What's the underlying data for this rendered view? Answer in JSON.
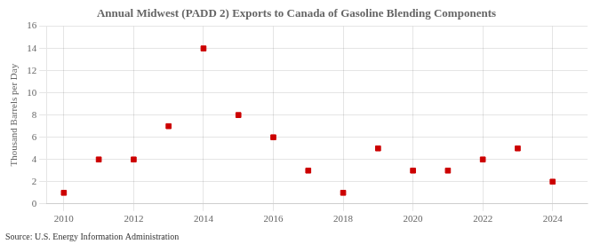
{
  "chart_data": {
    "type": "scatter",
    "title": "Annual Midwest (PADD 2) Exports to Canada of Gasoline Blending Components",
    "ylabel": "Thousand Barrels per Day",
    "annotation": "Source: U.S. Energy Information Administration",
    "x": [
      2010,
      2011,
      2012,
      2013,
      2014,
      2015,
      2016,
      2017,
      2018,
      2019,
      2020,
      2021,
      2022,
      2023,
      2024
    ],
    "values": [
      1,
      4,
      4,
      7,
      14,
      8,
      6,
      3,
      1,
      5,
      3,
      3,
      4,
      5,
      2
    ],
    "color": "#cc0000",
    "marker": "square",
    "xlim": [
      2009.5,
      2025.0
    ],
    "xticks": [
      2010,
      2012,
      2014,
      2016,
      2018,
      2020,
      2022,
      2024
    ],
    "ylim": [
      0,
      16
    ],
    "yticks": [
      0,
      2,
      4,
      6,
      8,
      10,
      12,
      14,
      16
    ],
    "grid": true
  }
}
